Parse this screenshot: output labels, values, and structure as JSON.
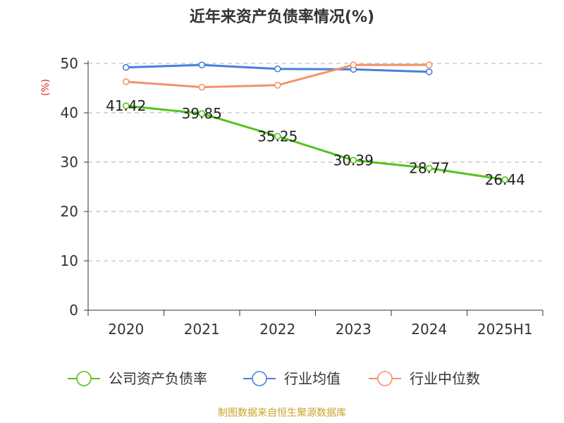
{
  "chart_data": {
    "type": "line",
    "title": "近年来资产负债率情况(%)",
    "ylabel": "(%)",
    "xlabel": "",
    "categories": [
      "2020",
      "2021",
      "2022",
      "2023",
      "2024",
      "2025H1"
    ],
    "ylim": [
      0,
      50
    ],
    "yticks": [
      0,
      10,
      20,
      30,
      40,
      50
    ],
    "grid": true,
    "legend_position": "bottom",
    "series": [
      {
        "name": "公司资产负债率",
        "color": "#52c41a",
        "values": [
          41.42,
          39.85,
          35.25,
          30.39,
          28.77,
          26.44
        ],
        "labels": [
          "41.42",
          "39.85",
          "35.25",
          "30.39",
          "28.77",
          "26.44"
        ]
      },
      {
        "name": "行业均值",
        "color": "#4a7fdc",
        "values": [
          49.2,
          49.7,
          48.9,
          48.8,
          48.3,
          null
        ]
      },
      {
        "name": "行业中位数",
        "color": "#f4926a",
        "values": [
          46.3,
          45.2,
          45.6,
          49.7,
          49.7,
          null
        ]
      }
    ]
  },
  "source": "制图数据来自恒生聚源数据库"
}
